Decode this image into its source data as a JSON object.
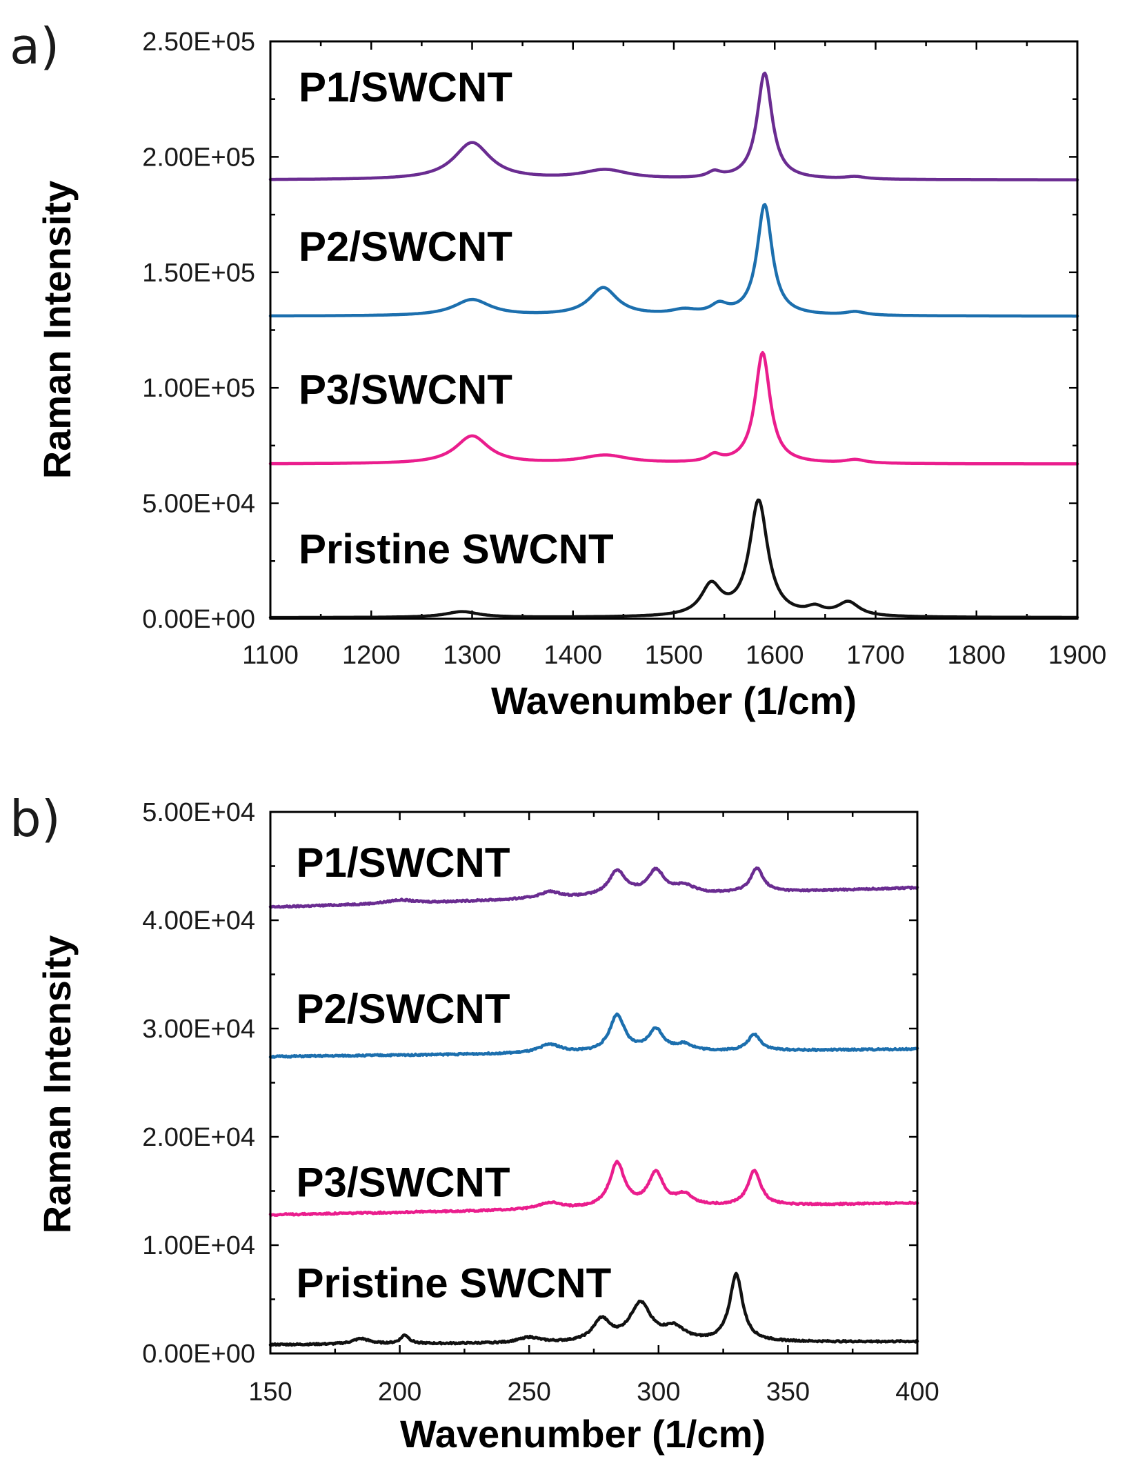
{
  "figure": {
    "panels": [
      {
        "label": "a)",
        "chart_data": {
          "type": "line",
          "title": "",
          "xlabel": "Wavenumber (1/cm)",
          "ylabel": "Raman Intensity",
          "xlim": [
            1100,
            1900
          ],
          "ylim": [
            0,
            250000
          ],
          "xticks": [
            1100,
            1200,
            1300,
            1400,
            1500,
            1600,
            1700,
            1800,
            1900
          ],
          "xtick_labels": [
            "1100",
            "1200",
            "1300",
            "1400",
            "1500",
            "1600",
            "1700",
            "1800",
            "1900"
          ],
          "yticks": [
            0,
            50000,
            100000,
            150000,
            200000,
            250000
          ],
          "ytick_labels": [
            "0.00E+00",
            "5.00E+04",
            "1.00E+05",
            "1.50E+05",
            "2.00E+05",
            "2.50E+05"
          ],
          "grid": false,
          "series": [
            {
              "name": "P1/SWCNT",
              "color": "#6a2c91",
              "label_x": 1128,
              "label_y": 224000,
              "baseline": 190000,
              "peaks": [
                [
                  1300,
                  16000,
                  22
                ],
                [
                  1432,
                  4000,
                  28
                ],
                [
                  1540,
                  2500,
                  8
                ],
                [
                  1590,
                  46000,
                  9
                ],
                [
                  1680,
                  1000,
                  12
                ]
              ],
              "x": [
                1100,
                1300,
                1432,
                1540,
                1590,
                1680,
                1900
              ],
              "y": [
                190000,
                210000,
                194000,
                193500,
                239000,
                191000,
                190000
              ]
            },
            {
              "name": "P2/SWCNT",
              "color": "#1c6fae",
              "label_x": 1128,
              "label_y": 155000,
              "baseline": 131000,
              "peaks": [
                [
                  1300,
                  7000,
                  22
                ],
                [
                  1430,
                  12000,
                  17
                ],
                [
                  1510,
                  2000,
                  15
                ],
                [
                  1545,
                  4000,
                  10
                ],
                [
                  1590,
                  48000,
                  9
                ],
                [
                  1680,
                  1500,
                  12
                ]
              ],
              "x": [
                1100,
                1300,
                1430,
                1510,
                1545,
                1590,
                1680,
                1900
              ],
              "y": [
                131000,
                138000,
                143000,
                133500,
                135000,
                180000,
                132500,
                131000
              ]
            },
            {
              "name": "P3/SWCNT",
              "color": "#ea1d8d",
              "label_x": 1128,
              "label_y": 93000,
              "baseline": 67000,
              "peaks": [
                [
                  1300,
                  12000,
                  20
                ],
                [
                  1432,
                  3500,
                  28
                ],
                [
                  1540,
                  3000,
                  8
                ],
                [
                  1588,
                  48000,
                  9
                ],
                [
                  1680,
                  1500,
                  12
                ]
              ],
              "x": [
                1100,
                1300,
                1432,
                1540,
                1588,
                1680,
                1900
              ],
              "y": [
                67000,
                79500,
                70500,
                70000,
                117000,
                68500,
                67000
              ]
            },
            {
              "name": "Pristine SWCNT",
              "color": "#111111",
              "label_x": 1128,
              "label_y": 24000,
              "baseline": 500,
              "peaks": [
                [
                  1290,
                  2500,
                  20
                ],
                [
                  1537,
                  13000,
                  12
                ],
                [
                  1584,
                  50000,
                  11
                ],
                [
                  1640,
                  3000,
                  10
                ],
                [
                  1673,
                  6000,
                  13
                ]
              ],
              "x": [
                1100,
                1290,
                1537,
                1584,
                1640,
                1673,
                1900
              ],
              "y": [
                500,
                3000,
                14000,
                52500,
                4500,
                7000,
                1000
              ]
            }
          ]
        }
      },
      {
        "label": "b)",
        "chart_data": {
          "type": "line",
          "title": "",
          "xlabel": "Wavenumber (1/cm)",
          "ylabel": "Raman Intensity",
          "xlim": [
            150,
            400
          ],
          "ylim": [
            0,
            50000
          ],
          "xticks": [
            150,
            200,
            250,
            300,
            350,
            400
          ],
          "xtick_labels": [
            "150",
            "200",
            "250",
            "300",
            "350",
            "400"
          ],
          "yticks": [
            0,
            10000,
            20000,
            30000,
            40000,
            50000
          ],
          "ytick_labels": [
            "0.00E+00",
            "1.00E+04",
            "2.00E+04",
            "3.00E+04",
            "4.00E+04",
            "5.00E+04"
          ],
          "grid": false,
          "series": [
            {
              "name": "P1/SWCNT",
              "color": "#6a2c91",
              "label_x": 160,
              "label_y": 44000,
              "baseline": 41200,
              "slope": 1800,
              "peaks": [
                [
                  200,
                  300,
                  6
                ],
                [
                  258,
                  600,
                  5
                ],
                [
                  284,
                  2300,
                  4
                ],
                [
                  299,
                  2200,
                  4
                ],
                [
                  310,
                  700,
                  5
                ],
                [
                  338,
                  2200,
                  3
                ]
              ],
              "x": [
                150,
                258,
                284,
                299,
                338,
                400
              ],
              "y": [
                41200,
                41800,
                43800,
                43800,
                43700,
                43000
              ]
            },
            {
              "name": "P2/SWCNT",
              "color": "#1c6fae",
              "label_x": 160,
              "label_y": 30500,
              "baseline": 27400,
              "slope": 700,
              "peaks": [
                [
                  258,
                  800,
                  5
                ],
                [
                  284,
                  3400,
                  3.5
                ],
                [
                  299,
                  2000,
                  3.5
                ],
                [
                  310,
                  600,
                  4
                ],
                [
                  337,
                  1500,
                  3
                ]
              ],
              "x": [
                150,
                258,
                284,
                299,
                337,
                400
              ],
              "y": [
                27400,
                28300,
                30800,
                29500,
                29300,
                28100
              ]
            },
            {
              "name": "P3/SWCNT",
              "color": "#ea1d8d",
              "label_x": 160,
              "label_y": 14500,
              "baseline": 12800,
              "slope": 1100,
              "peaks": [
                [
                  258,
                  600,
                  5
                ],
                [
                  284,
                  4100,
                  3.5
                ],
                [
                  299,
                  3100,
                  3.5
                ],
                [
                  310,
                  1000,
                  4
                ],
                [
                  337,
                  3200,
                  3
                ]
              ],
              "x": [
                150,
                258,
                284,
                299,
                337,
                400
              ],
              "y": [
                12800,
                13500,
                17100,
                16100,
                16500,
                13900
              ]
            },
            {
              "name": "Pristine SWCNT",
              "color": "#111111",
              "label_x": 160,
              "label_y": 5200,
              "baseline": 800,
              "slope": 300,
              "peaks": [
                [
                  185,
                  500,
                  4
                ],
                [
                  202,
                  800,
                  2
                ],
                [
                  250,
                  500,
                  5
                ],
                [
                  278,
                  2000,
                  4
                ],
                [
                  293,
                  3500,
                  5
                ],
                [
                  306,
                  1200,
                  5
                ],
                [
                  330,
                  6200,
                  3
                ]
              ],
              "x": [
                150,
                202,
                278,
                293,
                330,
                400
              ],
              "y": [
                800,
                1600,
                2900,
                4400,
                7100,
                1100
              ]
            }
          ]
        }
      }
    ]
  }
}
